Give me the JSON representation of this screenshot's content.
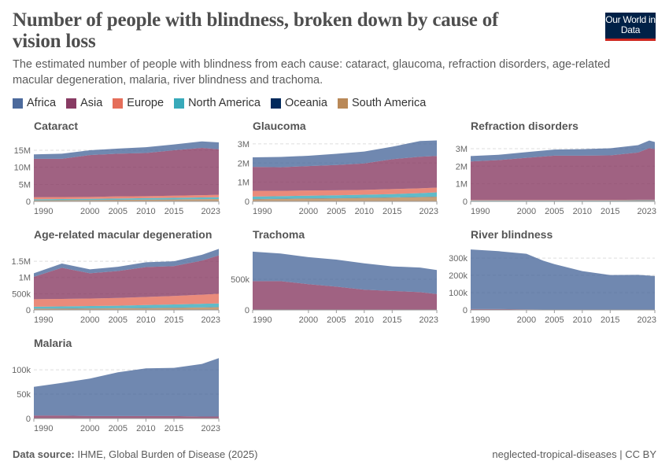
{
  "header": {
    "title": "Number of people with blindness, broken down by cause of vision loss",
    "subtitle": "The estimated number of people with blindness from each cause: cataract, glaucoma, refraction disorders, age-related macular degeneration, malaria, river blindness and trachoma.",
    "logo_text": "Our World in Data"
  },
  "legend": [
    {
      "name": "Africa",
      "color": "#4C6A9C"
    },
    {
      "name": "Asia",
      "color": "#883B63"
    },
    {
      "name": "Europe",
      "color": "#E56E5A"
    },
    {
      "name": "North America",
      "color": "#38AABA"
    },
    {
      "name": "Oceania",
      "color": "#00295B"
    },
    {
      "name": "South America",
      "color": "#B98857"
    }
  ],
  "footer": {
    "source_label": "Data source:",
    "source": "IHME, Global Burden of Disease (2025)",
    "right": "neglected-tropical-diseases | CC BY"
  },
  "chart_data": [
    {
      "type": "area",
      "stacked": true,
      "title": "Cataract",
      "x": [
        1990,
        1995,
        2000,
        2005,
        2010,
        2015,
        2020,
        2023
      ],
      "xticks": [
        "1990",
        "2000",
        "2005",
        "2010",
        "2015",
        "2023"
      ],
      "yticks": [
        {
          "v": 0,
          "l": "0"
        },
        {
          "v": 5000000,
          "l": "5M"
        },
        {
          "v": 10000000,
          "l": "10M"
        },
        {
          "v": 15000000,
          "l": "15M"
        }
      ],
      "ylim": [
        0,
        18000000
      ],
      "series": [
        {
          "name": "South America",
          "values": [
            300000,
            340000,
            380000,
            440000,
            500000,
            560000,
            640000,
            680000
          ]
        },
        {
          "name": "Oceania",
          "values": [
            20000,
            20000,
            20000,
            20000,
            20000,
            20000,
            20000,
            20000
          ]
        },
        {
          "name": "North America",
          "values": [
            300000,
            320000,
            350000,
            380000,
            420000,
            460000,
            500000,
            520000
          ]
        },
        {
          "name": "Europe",
          "values": [
            600000,
            580000,
            550000,
            640000,
            600000,
            620000,
            660000,
            700000
          ]
        },
        {
          "name": "Asia",
          "values": [
            11280000,
            11240000,
            12300000,
            12520000,
            12660000,
            13340000,
            13880000,
            13380000
          ]
        },
        {
          "name": "Africa",
          "values": [
            1300000,
            1500000,
            1400000,
            1500000,
            1700000,
            1700000,
            1900000,
            2000000
          ]
        }
      ]
    },
    {
      "type": "area",
      "stacked": true,
      "title": "Glaucoma",
      "x": [
        1990,
        1995,
        2000,
        2005,
        2010,
        2015,
        2020,
        2023
      ],
      "xticks": [
        "1990",
        "2000",
        "2005",
        "2010",
        "2015",
        "2023"
      ],
      "yticks": [
        {
          "v": 0,
          "l": "0"
        },
        {
          "v": 1000000,
          "l": "1M"
        },
        {
          "v": 2000000,
          "l": "2M"
        },
        {
          "v": 3000000,
          "l": "3M"
        }
      ],
      "ylim": [
        0,
        3200000
      ],
      "series": [
        {
          "name": "South America",
          "values": [
            110000,
            130000,
            150000,
            160000,
            180000,
            200000,
            220000,
            240000
          ]
        },
        {
          "name": "Oceania",
          "values": [
            10000,
            10000,
            10000,
            10000,
            10000,
            10000,
            10000,
            10000
          ]
        },
        {
          "name": "North America",
          "values": [
            130000,
            130000,
            140000,
            150000,
            160000,
            170000,
            200000,
            220000
          ]
        },
        {
          "name": "Europe",
          "values": [
            300000,
            280000,
            270000,
            260000,
            250000,
            260000,
            250000,
            250000
          ]
        },
        {
          "name": "Asia",
          "values": [
            1250000,
            1230000,
            1270000,
            1320000,
            1380000,
            1560000,
            1650000,
            1650000
          ]
        },
        {
          "name": "Africa",
          "values": [
            500000,
            540000,
            540000,
            580000,
            620000,
            650000,
            820000,
            810000
          ]
        }
      ]
    },
    {
      "type": "area",
      "stacked": true,
      "title": "Refraction disorders",
      "x": [
        1990,
        1995,
        2000,
        2005,
        2010,
        2015,
        2020,
        2022,
        2023
      ],
      "xticks": [
        "1990",
        "2000",
        "2005",
        "2010",
        "2015",
        "2023"
      ],
      "yticks": [
        {
          "v": 0,
          "l": "0"
        },
        {
          "v": 1000000,
          "l": "1M"
        },
        {
          "v": 2000000,
          "l": "2M"
        },
        {
          "v": 3000000,
          "l": "3M"
        }
      ],
      "ylim": [
        0,
        3490000
      ],
      "series": [
        {
          "name": "South America",
          "values": [
            30000,
            30000,
            30000,
            30000,
            30000,
            30000,
            35000,
            35000,
            35000
          ]
        },
        {
          "name": "Oceania",
          "values": [
            5000,
            5000,
            5000,
            5000,
            5000,
            5000,
            5000,
            5000,
            5000
          ]
        },
        {
          "name": "North America",
          "values": [
            20000,
            20000,
            20000,
            20000,
            20000,
            20000,
            25000,
            25000,
            25000
          ]
        },
        {
          "name": "Europe",
          "values": [
            30000,
            30000,
            30000,
            30000,
            30000,
            30000,
            30000,
            30000,
            30000
          ]
        },
        {
          "name": "Asia",
          "values": [
            2185000,
            2265000,
            2395000,
            2515000,
            2515000,
            2535000,
            2685000,
            2935000,
            2875000
          ]
        },
        {
          "name": "Africa",
          "values": [
            310000,
            300000,
            320000,
            350000,
            370000,
            400000,
            420000,
            430000,
            410000
          ]
        }
      ]
    },
    {
      "type": "area",
      "stacked": true,
      "title": "Age-related macular degeneration",
      "x": [
        1990,
        1995,
        2000,
        2005,
        2010,
        2015,
        2020,
        2023
      ],
      "xticks": [
        "1990",
        "2000",
        "2005",
        "2010",
        "2015",
        "2023"
      ],
      "yticks": [
        {
          "v": 0,
          "l": "0"
        },
        {
          "v": 500000,
          "l": "500k"
        },
        {
          "v": 1000000,
          "l": "1M"
        },
        {
          "v": 1500000,
          "l": "1.5M"
        }
      ],
      "ylim": [
        0,
        1890000
      ],
      "series": [
        {
          "name": "South America",
          "values": [
            35000,
            40000,
            45000,
            50000,
            55000,
            65000,
            75000,
            85000
          ]
        },
        {
          "name": "Oceania",
          "values": [
            5000,
            5000,
            5000,
            5000,
            5000,
            5000,
            5000,
            5000
          ]
        },
        {
          "name": "North America",
          "values": [
            60000,
            65000,
            70000,
            75000,
            90000,
            100000,
            110000,
            110000
          ]
        },
        {
          "name": "Europe",
          "values": [
            230000,
            230000,
            230000,
            240000,
            250000,
            260000,
            280000,
            300000
          ]
        },
        {
          "name": "Asia",
          "values": [
            690000,
            960000,
            780000,
            830000,
            920000,
            920000,
            1050000,
            1180000
          ]
        },
        {
          "name": "Africa",
          "values": [
            110000,
            130000,
            120000,
            130000,
            150000,
            150000,
            180000,
            200000
          ]
        }
      ]
    },
    {
      "type": "area",
      "stacked": true,
      "title": "Trachoma",
      "x": [
        1990,
        1995,
        2000,
        2005,
        2010,
        2015,
        2020,
        2023
      ],
      "xticks": [
        "1990",
        "2000",
        "2005",
        "2010",
        "2015",
        "2023"
      ],
      "yticks": [
        {
          "v": 0,
          "l": "0"
        },
        {
          "v": 500000,
          "l": "500k"
        }
      ],
      "ylim": [
        0,
        1000000
      ],
      "series": [
        {
          "name": "South America",
          "values": [
            1000,
            1000,
            1000,
            1000,
            1000,
            1000,
            1000,
            1000
          ]
        },
        {
          "name": "Oceania",
          "values": [
            1000,
            1000,
            1000,
            1000,
            1000,
            1000,
            1000,
            1000
          ]
        },
        {
          "name": "North America",
          "values": [
            0,
            0,
            0,
            0,
            0,
            0,
            0,
            0
          ]
        },
        {
          "name": "Europe",
          "values": [
            0,
            0,
            0,
            0,
            0,
            0,
            0,
            0
          ]
        },
        {
          "name": "Asia",
          "values": [
            468000,
            468000,
            418000,
            378000,
            328000,
            308000,
            288000,
            258000
          ]
        },
        {
          "name": "Africa",
          "values": [
            480000,
            450000,
            440000,
            440000,
            430000,
            400000,
            400000,
            390000
          ]
        }
      ]
    },
    {
      "type": "area",
      "stacked": true,
      "title": "River blindness",
      "x": [
        1990,
        1995,
        2000,
        2003,
        2005,
        2010,
        2015,
        2020,
        2023
      ],
      "xticks": [
        "1990",
        "2000",
        "2005",
        "2010",
        "2015",
        "2023"
      ],
      "yticks": [
        {
          "v": 0,
          "l": "0"
        },
        {
          "v": 100000,
          "l": "100k"
        },
        {
          "v": 200000,
          "l": "200k"
        },
        {
          "v": 300000,
          "l": "300k"
        }
      ],
      "ylim": [
        0,
        355000
      ],
      "series": [
        {
          "name": "South America",
          "values": [
            2000,
            2000,
            1500,
            1000,
            1000,
            500,
            500,
            500,
            500
          ]
        },
        {
          "name": "Oceania",
          "values": [
            0,
            0,
            0,
            0,
            0,
            0,
            0,
            0,
            0
          ]
        },
        {
          "name": "North America",
          "values": [
            0,
            0,
            0,
            0,
            0,
            0,
            0,
            0,
            0
          ]
        },
        {
          "name": "Europe",
          "values": [
            0,
            0,
            0,
            0,
            0,
            0,
            0,
            0,
            0
          ]
        },
        {
          "name": "Asia",
          "values": [
            3000,
            3000,
            2000,
            1500,
            1000,
            1000,
            1000,
            1000,
            1000
          ]
        },
        {
          "name": "Africa",
          "values": [
            345000,
            335000,
            321500,
            282500,
            263000,
            223500,
            200500,
            201500,
            194500
          ]
        }
      ]
    },
    {
      "type": "area",
      "stacked": true,
      "title": "Malaria",
      "x": [
        1990,
        1995,
        2000,
        2005,
        2010,
        2015,
        2020,
        2023
      ],
      "xticks": [
        "1990",
        "2000",
        "2005",
        "2010",
        "2015",
        "2023"
      ],
      "yticks": [
        {
          "v": 0,
          "l": "0"
        },
        {
          "v": 50000,
          "l": "50k"
        },
        {
          "v": 100000,
          "l": "100k"
        }
      ],
      "ylim": [
        0,
        126000
      ],
      "series": [
        {
          "name": "South America",
          "values": [
            500,
            500,
            500,
            500,
            500,
            500,
            500,
            500
          ]
        },
        {
          "name": "Oceania",
          "values": [
            0,
            0,
            0,
            0,
            0,
            0,
            0,
            0
          ]
        },
        {
          "name": "North America",
          "values": [
            0,
            0,
            0,
            0,
            0,
            0,
            0,
            0
          ]
        },
        {
          "name": "Europe",
          "values": [
            0,
            0,
            0,
            0,
            0,
            0,
            0,
            0
          ]
        },
        {
          "name": "Asia",
          "values": [
            5500,
            5500,
            4500,
            4500,
            4500,
            4500,
            3500,
            3500
          ]
        },
        {
          "name": "Africa",
          "values": [
            59000,
            67000,
            77000,
            90000,
            98000,
            99000,
            108000,
            120000
          ]
        }
      ]
    }
  ]
}
